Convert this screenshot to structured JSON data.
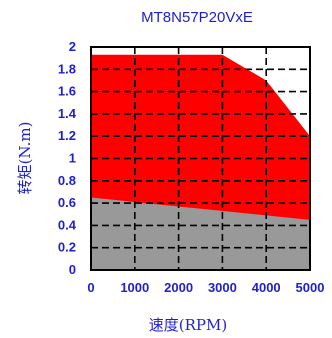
{
  "chart_data": {
    "type": "area",
    "title": "MT8N57P20VxE",
    "xlabel": "速度(RPM)",
    "ylabel": "转矩(N.m)",
    "xlim": [
      0,
      5000
    ],
    "ylim": [
      0,
      2
    ],
    "xticks": [
      "0",
      "1000",
      "2000",
      "3000",
      "4000",
      "5000"
    ],
    "yticks": [
      "0",
      "0.2",
      "0.4",
      "0.6",
      "0.8",
      "1",
      "1.2",
      "1.4",
      "1.6",
      "1.8",
      "2"
    ],
    "grid": true,
    "grid_style": "dashed",
    "series": [
      {
        "color": "#ff0000",
        "x": [
          0,
          3000,
          4000,
          5000
        ],
        "y": [
          1.93,
          1.93,
          1.7,
          1.2
        ]
      },
      {
        "color": "#999999",
        "x": [
          0,
          5000
        ],
        "y": [
          0.65,
          0.45
        ]
      }
    ]
  }
}
